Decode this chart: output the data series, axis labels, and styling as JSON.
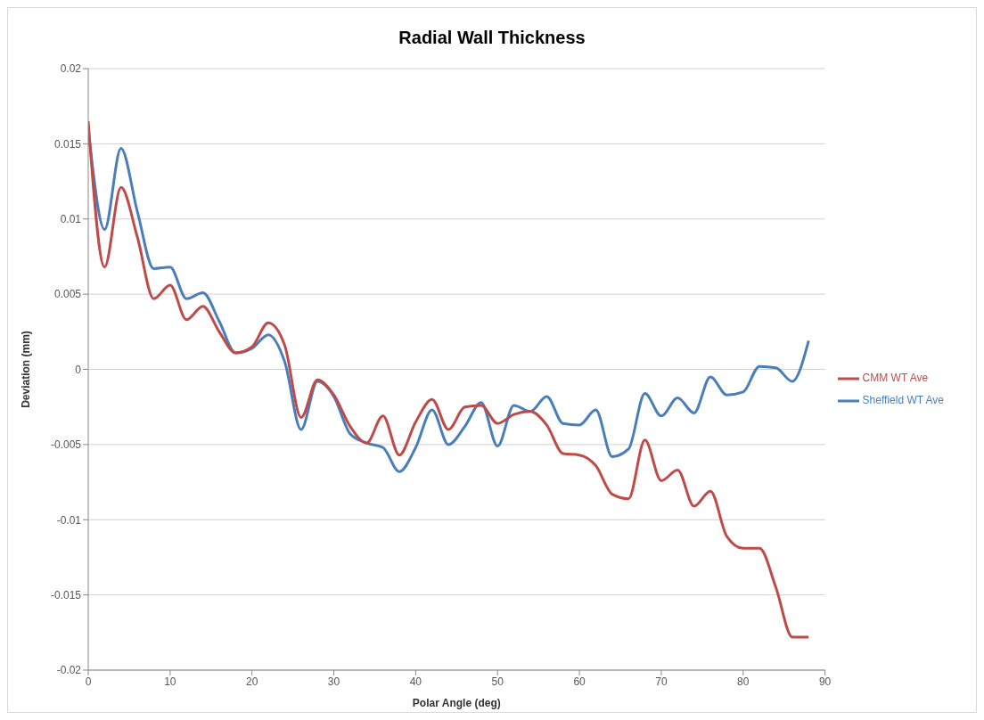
{
  "chart_data": {
    "type": "line",
    "title": "Radial Wall Thickness",
    "xlabel": "Polar Angle (deg)",
    "ylabel": "Deviation (mm)",
    "x": [
      0,
      2,
      4,
      6,
      8,
      10,
      12,
      14,
      16,
      18,
      20,
      22,
      24,
      26,
      28,
      30,
      32,
      34,
      36,
      38,
      40,
      42,
      44,
      46,
      48,
      50,
      52,
      54,
      56,
      58,
      60,
      62,
      64,
      66,
      68,
      70,
      72,
      74,
      76,
      78,
      80,
      82,
      84,
      86,
      88
    ],
    "series": [
      {
        "name": "Sheffield WT Ave",
        "color": "#4a7ebb",
        "values": [
          0.016,
          0.0093,
          0.0147,
          0.0105,
          0.0067,
          0.0068,
          0.0047,
          0.0051,
          0.0032,
          0.0011,
          0.0014,
          0.0023,
          0.0005,
          -0.004,
          -0.0008,
          -0.0018,
          -0.0043,
          -0.0049,
          -0.0052,
          -0.0068,
          -0.0052,
          -0.0027,
          -0.005,
          -0.0038,
          -0.0022,
          -0.0051,
          -0.0024,
          -0.0028,
          -0.0018,
          -0.0036,
          -0.0037,
          -0.0027,
          -0.0058,
          -0.0053,
          -0.0016,
          -0.0031,
          -0.0019,
          -0.0029,
          -0.0005,
          -0.0017,
          -0.0015,
          0.0002,
          0.0001,
          -0.0008,
          0.0019
        ]
      },
      {
        "name": "CMM WT Ave",
        "color": "#be4b48",
        "values": [
          0.0165,
          0.0068,
          0.0121,
          0.0088,
          0.0047,
          0.0056,
          0.0033,
          0.0042,
          0.0025,
          0.0011,
          0.0015,
          0.0031,
          0.0016,
          -0.0032,
          -0.0007,
          -0.0017,
          -0.0038,
          -0.0049,
          -0.0031,
          -0.0057,
          -0.0035,
          -0.002,
          -0.004,
          -0.0025,
          -0.0024,
          -0.0036,
          -0.003,
          -0.0028,
          -0.0037,
          -0.0056,
          -0.0057,
          -0.0064,
          -0.0083,
          -0.0086,
          -0.0047,
          -0.0074,
          -0.0067,
          -0.0091,
          -0.0081,
          -0.0111,
          -0.0119,
          -0.0119,
          -0.0145,
          -0.0178,
          -0.0178
        ]
      }
    ],
    "xlim": [
      0,
      90
    ],
    "xticks": [
      0,
      10,
      20,
      30,
      40,
      50,
      60,
      70,
      80,
      90
    ],
    "ylim": [
      -0.02,
      0.02
    ],
    "yticks": [
      -0.02,
      -0.015,
      -0.01,
      -0.005,
      0,
      0.005,
      0.01,
      0.015,
      0.02
    ],
    "grid": "y",
    "legend": "right",
    "marker": "none",
    "line_style": "solid"
  }
}
